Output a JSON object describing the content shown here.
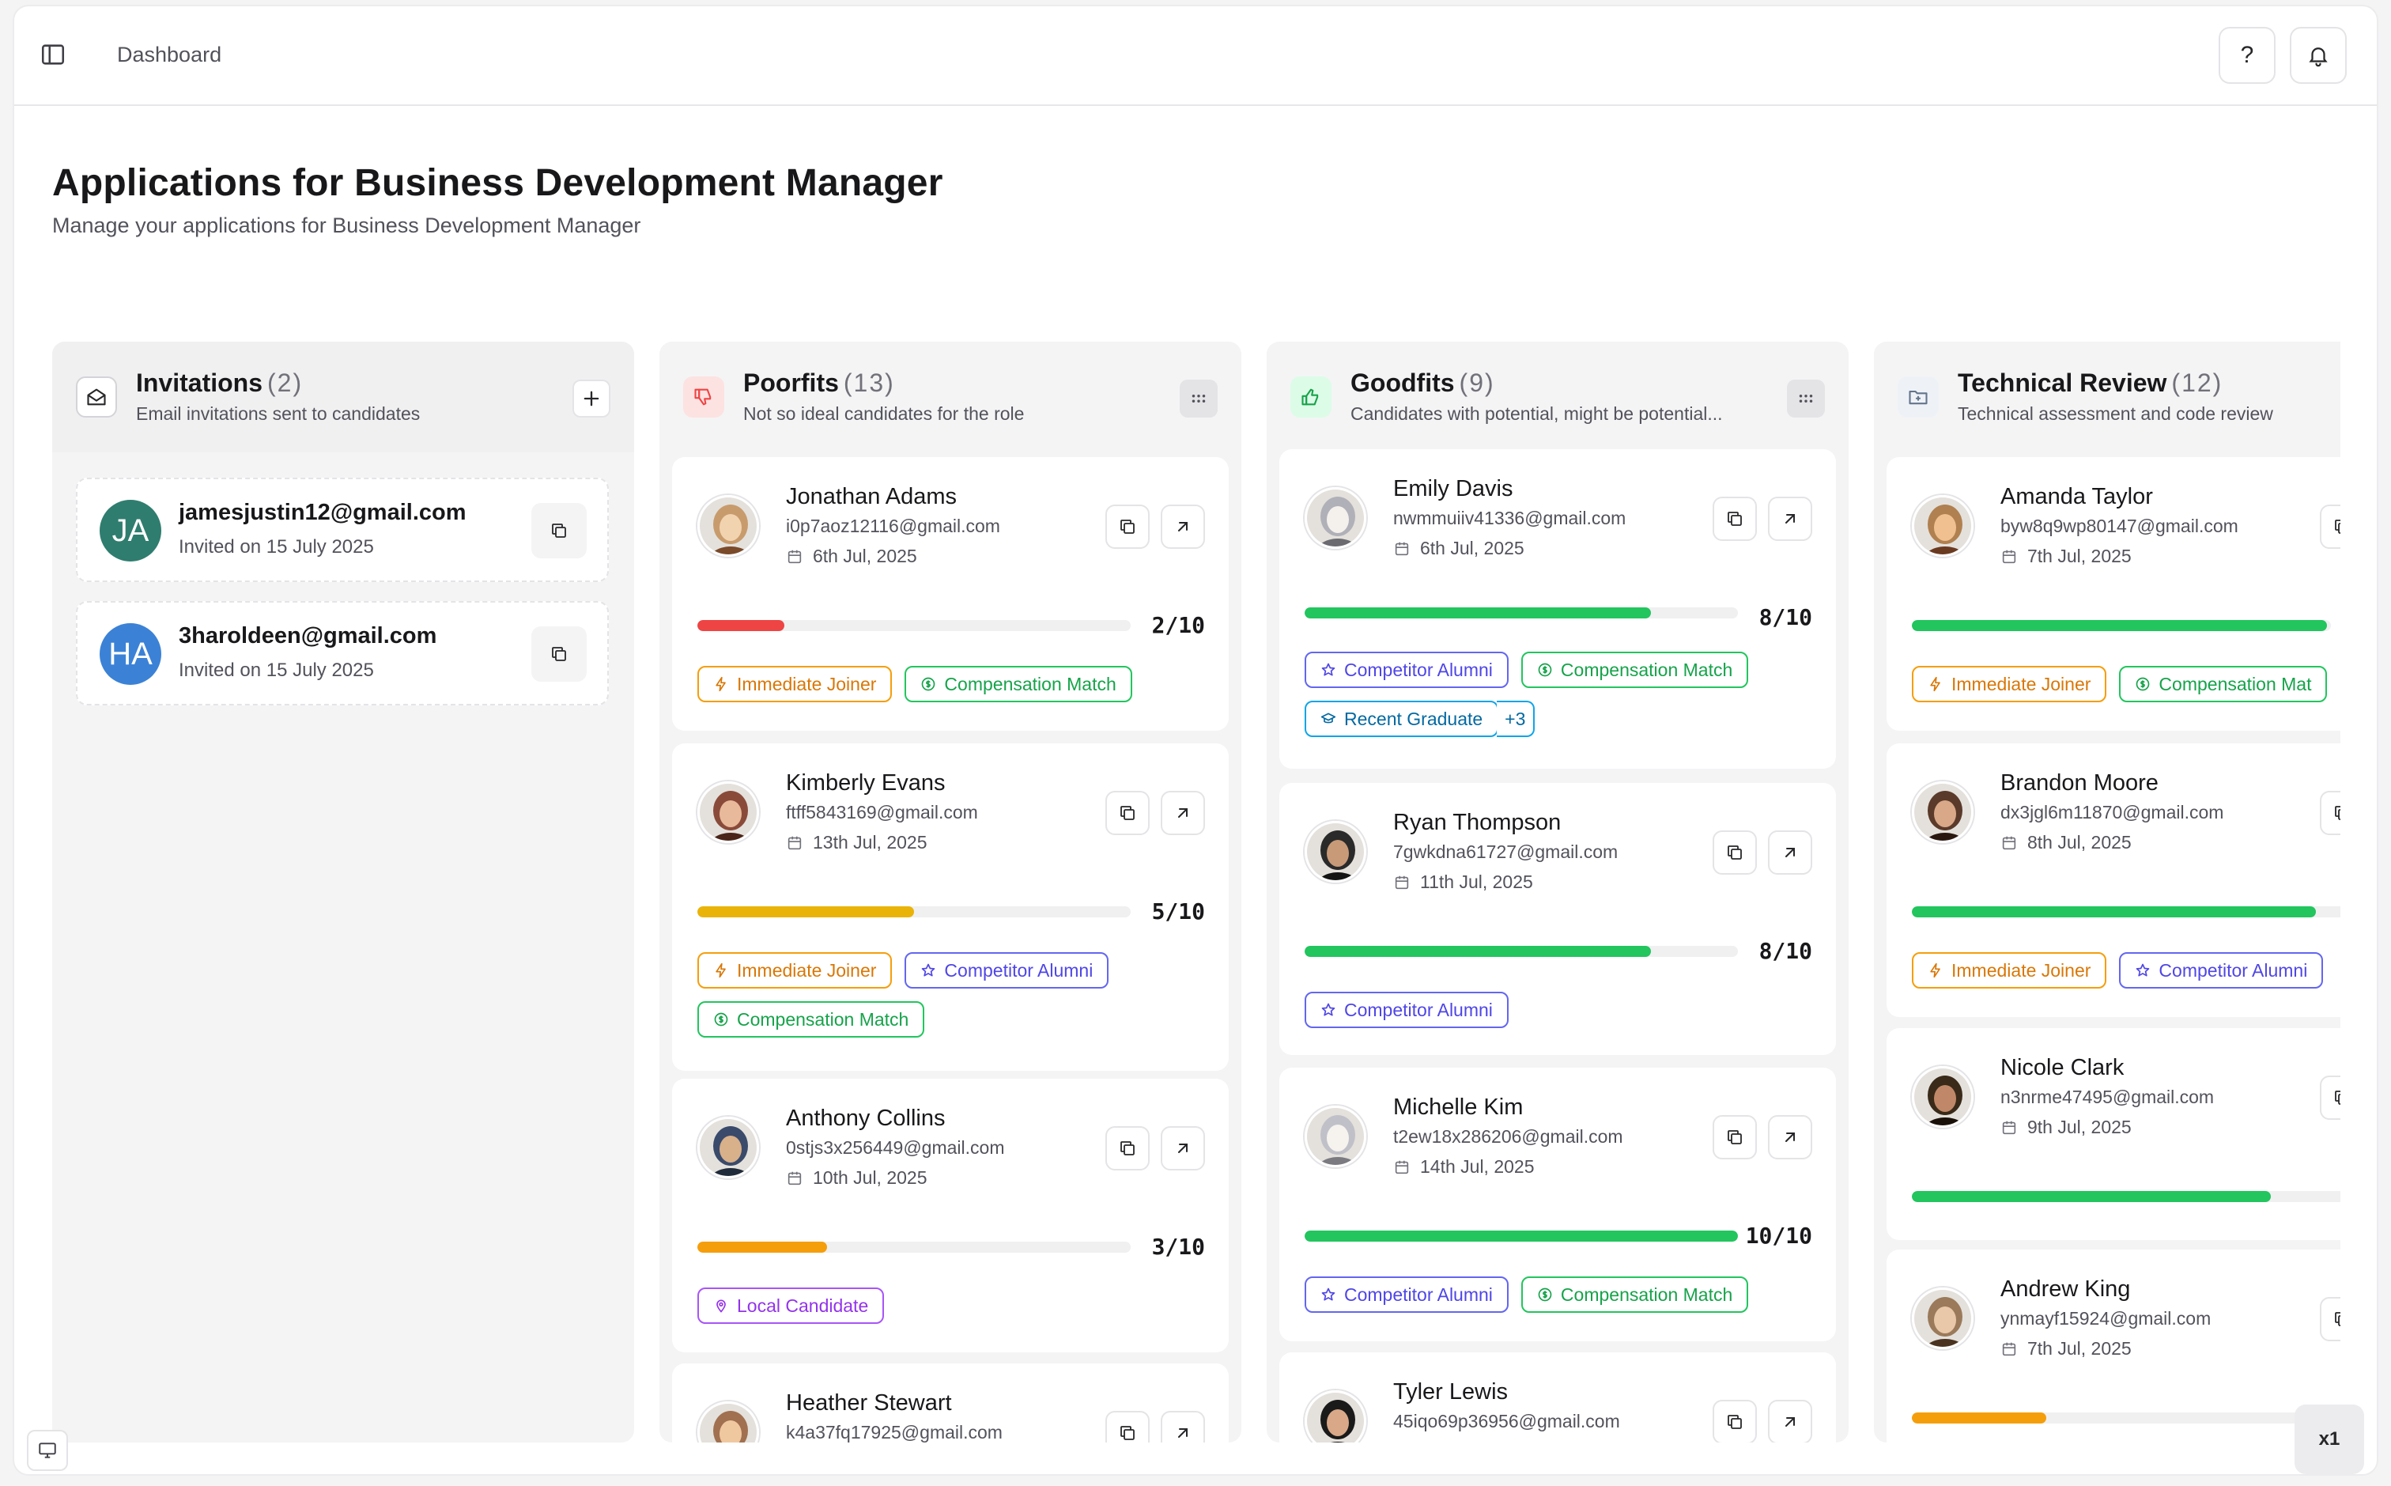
{
  "header": {
    "breadcrumb": "Dashboard",
    "help_label": "?"
  },
  "page": {
    "title": "Applications for Business Development Manager",
    "subtitle": "Manage your applications for Business Development Manager"
  },
  "columns": [
    {
      "title": "Invitations",
      "count": "(2)",
      "desc": "Email invitations sent to candidates",
      "icon": "mail-open-icon",
      "color": "#52525b"
    },
    {
      "title": "Poorfits",
      "count": "(13)",
      "desc": "Not so ideal candidates for the role",
      "icon": "thumbs-down-icon",
      "color": "#ef4444"
    },
    {
      "title": "Goodfits",
      "count": "(9)",
      "desc": "Candidates with potential, might be potential...",
      "icon": "thumbs-up-icon",
      "color": "#16a34a"
    },
    {
      "title": "Technical Review",
      "count": "(12)",
      "desc": "Technical assessment and code review",
      "icon": "folder-icon",
      "color": "#64748b"
    }
  ],
  "invitations": [
    {
      "initials": "JA",
      "email": "jamesjustin12@gmail.com",
      "invited": "Invited on 15 July 2025",
      "color": "#2f7d6f"
    },
    {
      "initials": "HA",
      "email": "3haroldeen@gmail.com",
      "invited": "Invited on 15 July 2025",
      "color": "#3b82d6"
    }
  ],
  "poorfits": [
    {
      "name": "Jonathan Adams",
      "email": "i0p7aoz12116@gmail.com",
      "date": "6th Jul, 2025",
      "score": "2/10",
      "score_value": 0.2,
      "bar_color": "#ef4444",
      "tags": [
        {
          "label": "Immediate Joiner",
          "kind": "orange"
        },
        {
          "label": "Compensation Match",
          "kind": "green"
        }
      ]
    },
    {
      "name": "Kimberly Evans",
      "email": "ftff5843169@gmail.com",
      "date": "13th Jul, 2025",
      "score": "5/10",
      "score_value": 0.5,
      "bar_color": "#eab308",
      "tags": [
        {
          "label": "Immediate Joiner",
          "kind": "orange"
        },
        {
          "label": "Competitor Alumni",
          "kind": "indigo"
        },
        {
          "label": "Compensation Match",
          "kind": "green"
        }
      ]
    },
    {
      "name": "Anthony Collins",
      "email": "0stjs3x256449@gmail.com",
      "date": "10th Jul, 2025",
      "score": "3/10",
      "score_value": 0.3,
      "bar_color": "#f59e0b",
      "tags": [
        {
          "label": "Local Candidate",
          "kind": "purple"
        }
      ]
    },
    {
      "name": "Heather Stewart",
      "email": "k4a37fq17925@gmail.com",
      "date": "",
      "score": "",
      "score_value": null,
      "bar_color": "",
      "tags": []
    }
  ],
  "goodfits": [
    {
      "name": "Emily Davis",
      "email": "nwmmuiiv41336@gmail.com",
      "date": "6th Jul, 2025",
      "score": "8/10",
      "score_value": 0.8,
      "bar_color": "#22c55e",
      "tags": [
        {
          "label": "Competitor Alumni",
          "kind": "indigo"
        },
        {
          "label": "Compensation Match",
          "kind": "green"
        },
        {
          "label": "Recent Graduate",
          "kind": "blue"
        },
        {
          "label": "+3",
          "kind": "more"
        }
      ]
    },
    {
      "name": "Ryan Thompson",
      "email": "7gwkdna61727@gmail.com",
      "date": "11th Jul, 2025",
      "score": "8/10",
      "score_value": 0.8,
      "bar_color": "#22c55e",
      "tags": [
        {
          "label": "Competitor Alumni",
          "kind": "indigo"
        }
      ]
    },
    {
      "name": "Michelle Kim",
      "email": "t2ew18x286206@gmail.com",
      "date": "14th Jul, 2025",
      "score": "10/10",
      "score_value": 1.0,
      "bar_color": "#22c55e",
      "tags": [
        {
          "label": "Competitor Alumni",
          "kind": "indigo"
        },
        {
          "label": "Compensation Match",
          "kind": "green"
        }
      ]
    },
    {
      "name": "Tyler Lewis",
      "email": "45iqo69p36956@gmail.com",
      "date": "",
      "score": "",
      "score_value": null,
      "bar_color": "",
      "tags": []
    }
  ],
  "technical": [
    {
      "name": "Amanda Taylor",
      "email": "byw8q9wp80147@gmail.com",
      "date": "7th Jul, 2025",
      "score_value": 0.99,
      "bar_color": "#22c55e",
      "tags": [
        {
          "label": "Immediate Joiner",
          "kind": "orange"
        },
        {
          "label": "Compensation Mat",
          "kind": "green"
        }
      ]
    },
    {
      "name": "Brandon Moore",
      "email": "dx3jgl6m11870@gmail.com",
      "date": "8th Jul, 2025",
      "score_value": 0.9,
      "bar_color": "#22c55e",
      "tags": [
        {
          "label": "Immediate Joiner",
          "kind": "orange"
        },
        {
          "label": "Competitor Alumni",
          "kind": "indigo"
        }
      ]
    },
    {
      "name": "Nicole Clark",
      "email": "n3nrme47495@gmail.com",
      "date": "9th Jul, 2025",
      "score_value": 0.8,
      "bar_color": "#22c55e",
      "tags": []
    },
    {
      "name": "Andrew King",
      "email": "ynmayf15924@gmail.com",
      "date": "7th Jul, 2025",
      "score_value": 0.3,
      "bar_color": "#f59e0b",
      "tags": []
    }
  ],
  "zoom": "x1"
}
